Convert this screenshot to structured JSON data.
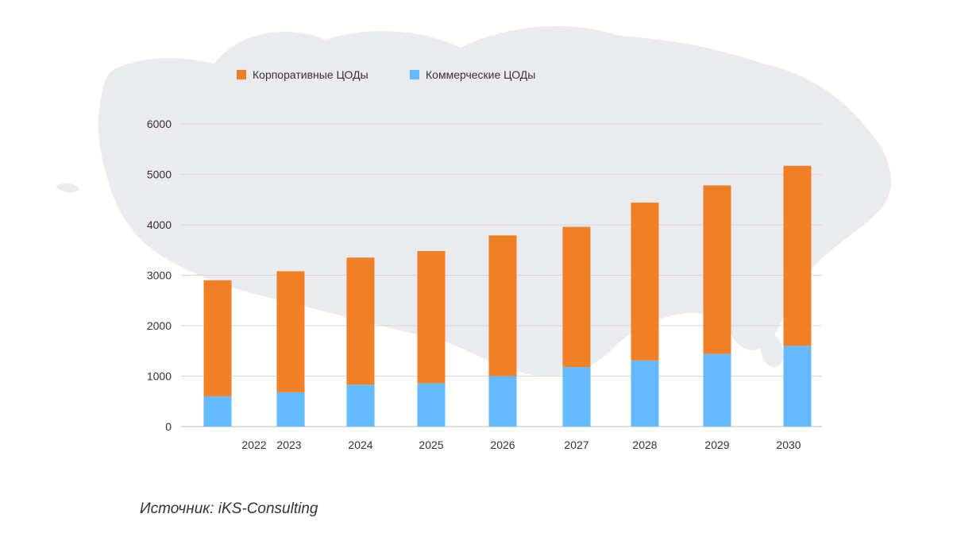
{
  "chart_data": {
    "type": "bar",
    "stacked": true,
    "categories": [
      "2022",
      "2023",
      "2024",
      "2025",
      "2026",
      "2027",
      "2028",
      "2029",
      "2030"
    ],
    "series": [
      {
        "name": "Коммерческие ЦОДы",
        "color": "#66BAFF",
        "values": [
          600,
          680,
          830,
          860,
          1000,
          1180,
          1310,
          1440,
          1600
        ]
      },
      {
        "name": "Корпоративные ЦОДы",
        "color": "#F08026",
        "values": [
          2300,
          2400,
          2520,
          2620,
          2790,
          2780,
          3130,
          3340,
          3570
        ]
      }
    ],
    "legend_order": [
      "Корпоративные ЦОДы",
      "Коммерческие ЦОДы"
    ],
    "legend_position": "top-left",
    "ylim": [
      0,
      6000
    ],
    "yticks": [
      "0",
      "1000",
      "2000",
      "3000",
      "4000",
      "5000",
      "6000"
    ],
    "grid": true,
    "title": "",
    "xlabel": "",
    "ylabel": ""
  },
  "source_text": "Источник: iKS-Consulting",
  "background_map": "russia-map-silhouette"
}
